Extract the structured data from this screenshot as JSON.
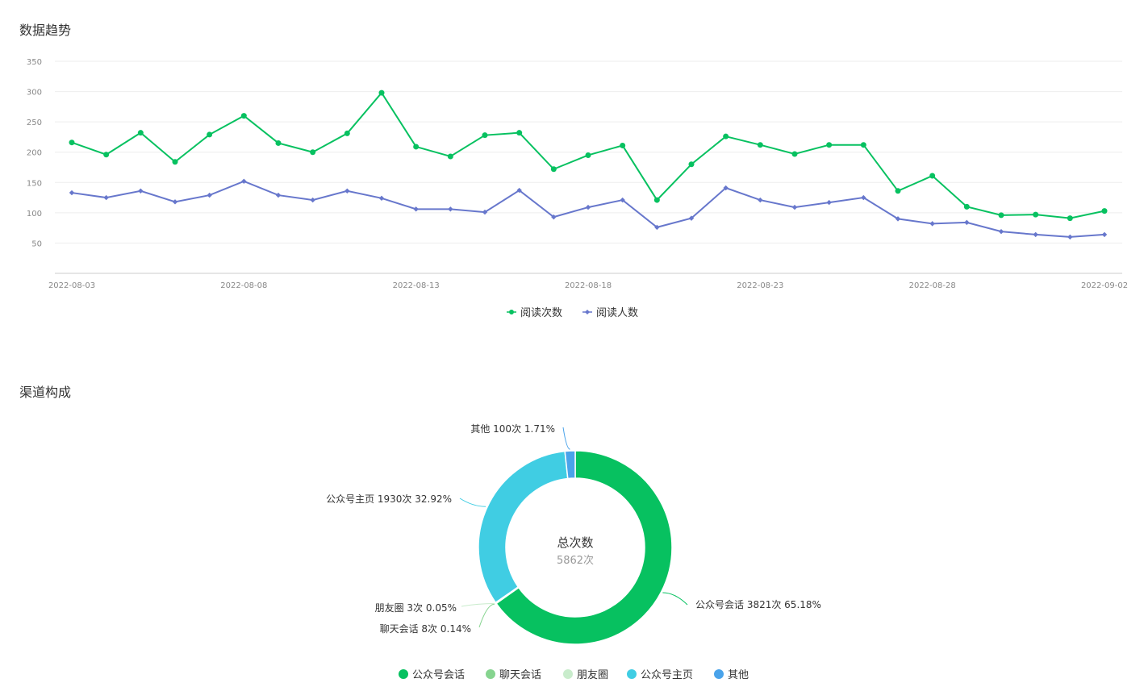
{
  "sections": {
    "trend_title": "数据趋势",
    "channel_title": "渠道构成"
  },
  "colors": {
    "reads": "#07c160",
    "readers": "#6777cc",
    "gridline": "#eeeeee",
    "axis": "#cccccc"
  },
  "chart_data": [
    {
      "type": "line",
      "title": "数据趋势",
      "ylim": [
        0,
        350
      ],
      "yticks": [
        50,
        100,
        150,
        200,
        250,
        300,
        350
      ],
      "grid": true,
      "legend_position": "bottom-center",
      "x": [
        "2022-08-03",
        "2022-08-04",
        "2022-08-05",
        "2022-08-06",
        "2022-08-07",
        "2022-08-08",
        "2022-08-09",
        "2022-08-10",
        "2022-08-11",
        "2022-08-12",
        "2022-08-13",
        "2022-08-14",
        "2022-08-15",
        "2022-08-16",
        "2022-08-17",
        "2022-08-18",
        "2022-08-19",
        "2022-08-20",
        "2022-08-21",
        "2022-08-22",
        "2022-08-23",
        "2022-08-24",
        "2022-08-25",
        "2022-08-26",
        "2022-08-27",
        "2022-08-28",
        "2022-08-29",
        "2022-08-30",
        "2022-08-31",
        "2022-09-01",
        "2022-09-02"
      ],
      "xtick_labels": [
        "2022-08-03",
        "2022-08-08",
        "2022-08-13",
        "2022-08-18",
        "2022-08-23",
        "2022-08-28",
        "2022-09-02"
      ],
      "series": [
        {
          "name": "阅读次数",
          "marker": "circle",
          "color": "#07c160",
          "values": [
            216,
            196,
            232,
            184,
            229,
            260,
            215,
            200,
            231,
            298,
            209,
            193,
            228,
            232,
            172,
            195,
            211,
            121,
            180,
            226,
            212,
            197,
            212,
            212,
            136,
            161,
            110,
            96,
            97,
            91,
            103
          ]
        },
        {
          "name": "阅读人数",
          "marker": "diamond",
          "color": "#6777cc",
          "values": [
            133,
            125,
            136,
            118,
            129,
            152,
            129,
            121,
            136,
            124,
            106,
            106,
            101,
            137,
            93,
            109,
            121,
            76,
            91,
            141,
            121,
            109,
            117,
            125,
            90,
            82,
            84,
            69,
            64,
            60,
            64
          ]
        }
      ]
    },
    {
      "type": "pie",
      "variant": "donut",
      "title": "渠道构成",
      "center": {
        "title": "总次数",
        "value": "5862次"
      },
      "legend_position": "bottom-center",
      "slices": [
        {
          "name": "公众号会话",
          "value": 3821,
          "percent": "65.18%",
          "label": "公众号会话 3821次 65.18%",
          "color": "#07c160"
        },
        {
          "name": "聊天会话",
          "value": 8,
          "percent": "0.14%",
          "label": "聊天会话 8次 0.14%",
          "color": "#86d48f"
        },
        {
          "name": "朋友圈",
          "value": 3,
          "percent": "0.05%",
          "label": "朋友圈 3次 0.05%",
          "color": "#c9eccc"
        },
        {
          "name": "公众号主页",
          "value": 1930,
          "percent": "32.92%",
          "label": "公众号主页 1930次 32.92%",
          "color": "#40cde3"
        },
        {
          "name": "其他",
          "value": 100,
          "percent": "1.71%",
          "label": "其他 100次 1.71%",
          "color": "#4aa3ea"
        }
      ]
    }
  ]
}
